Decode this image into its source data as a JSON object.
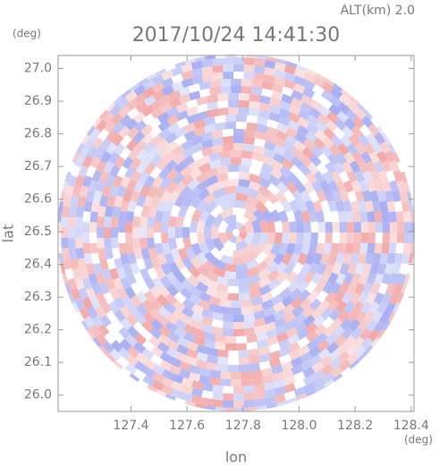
{
  "chart_data": {
    "type": "radar-image",
    "title": "2017/10/24 14:41:30",
    "subtitle": "ALT(km) 2.0",
    "x_label": "lon",
    "y_label": "lat",
    "x_unit": "(deg)",
    "y_unit": "(deg)",
    "xlim": [
      127.14,
      128.41
    ],
    "ylim": [
      25.95,
      27.04
    ],
    "xticks": [
      127.4,
      127.6,
      127.8,
      {
        "value": 128.0,
        "label": "128.0"
      },
      128.2,
      128.4
    ],
    "yticks": [
      {
        "value": 26.0,
        "label": "26.0"
      },
      26.1,
      26.2,
      26.3,
      26.4,
      26.5,
      26.6,
      26.7,
      26.8,
      26.9,
      {
        "value": 27.0,
        "label": "27.0"
      }
    ]
  }
}
